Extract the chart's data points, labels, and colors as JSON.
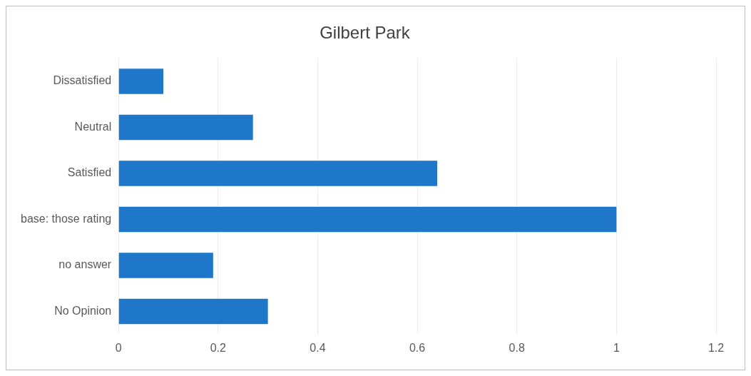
{
  "chart_data": {
    "type": "bar",
    "orientation": "horizontal",
    "title": "Gilbert Park",
    "categories": [
      "Dissatisfied",
      "Neutral",
      "Satisfied",
      "base: those rating",
      "no answer",
      "No Opinion"
    ],
    "values": [
      0.09,
      0.27,
      0.64,
      1,
      0.19,
      0.3
    ],
    "color": "#1f77c9",
    "xlim": [
      0,
      1.2
    ],
    "xticks": [
      0,
      0.2,
      0.4,
      0.6,
      0.8,
      1,
      1.2
    ],
    "grid": "x",
    "legend": false
  }
}
